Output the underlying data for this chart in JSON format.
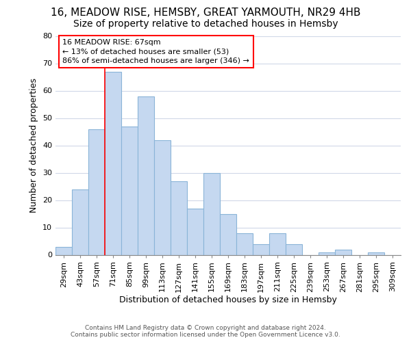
{
  "title1": "16, MEADOW RISE, HEMSBY, GREAT YARMOUTH, NR29 4HB",
  "title2": "Size of property relative to detached houses in Hemsby",
  "xlabel": "Distribution of detached houses by size in Hemsby",
  "ylabel": "Number of detached properties",
  "footer1": "Contains HM Land Registry data © Crown copyright and database right 2024.",
  "footer2": "Contains public sector information licensed under the Open Government Licence v3.0.",
  "categories": [
    "29sqm",
    "43sqm",
    "57sqm",
    "71sqm",
    "85sqm",
    "99sqm",
    "113sqm",
    "127sqm",
    "141sqm",
    "155sqm",
    "169sqm",
    "183sqm",
    "197sqm",
    "211sqm",
    "225sqm",
    "239sqm",
    "253sqm",
    "267sqm",
    "281sqm",
    "295sqm",
    "309sqm"
  ],
  "values": [
    3,
    24,
    46,
    67,
    47,
    58,
    42,
    27,
    17,
    30,
    15,
    8,
    4,
    8,
    4,
    0,
    1,
    2,
    0,
    1,
    0
  ],
  "bar_color": "#c5d8f0",
  "bar_edge_color": "#8ab4d8",
  "red_line_x": 2.5,
  "annotation_text": "16 MEADOW RISE: 67sqm\n← 13% of detached houses are smaller (53)\n86% of semi-detached houses are larger (346) →",
  "ylim": [
    0,
    80
  ],
  "yticks": [
    0,
    10,
    20,
    30,
    40,
    50,
    60,
    70,
    80
  ],
  "fig_bg": "#ffffff",
  "ax_bg": "#ffffff",
  "grid_color": "#d0d8e8",
  "title1_fontsize": 11,
  "title2_fontsize": 10,
  "xlabel_fontsize": 9,
  "ylabel_fontsize": 9,
  "tick_fontsize": 8,
  "ann_fontsize": 8
}
